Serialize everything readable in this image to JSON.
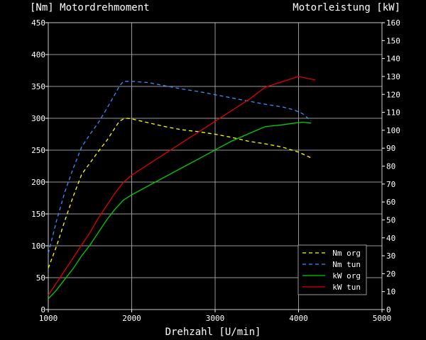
{
  "chart_data": {
    "type": "line",
    "title_left": "[Nm] Motordrehmoment",
    "title_right": "Motorleistung [kW]",
    "xlabel": "Drehzahl [U/min]",
    "xlim": [
      1000,
      5000
    ],
    "ylim_left": [
      0,
      450
    ],
    "ylim_right": [
      0,
      160
    ],
    "x_ticks": [
      1000,
      2000,
      3000,
      4000,
      5000
    ],
    "y_ticks_left": [
      0,
      50,
      100,
      150,
      200,
      250,
      300,
      350,
      400,
      450
    ],
    "y_ticks_right": [
      0,
      10,
      20,
      30,
      40,
      50,
      60,
      70,
      80,
      90,
      100,
      110,
      120,
      130,
      140,
      150,
      160
    ],
    "grid": true,
    "legend_position": "bottom-right",
    "series": [
      {
        "name": "Nm org",
        "axis": "left",
        "color": "#ffff00",
        "style": "dashed",
        "x": [
          1000,
          1100,
          1200,
          1300,
          1400,
          1500,
          1600,
          1700,
          1800,
          1850,
          1900,
          1950,
          2000,
          2200,
          2400,
          2600,
          2800,
          3000,
          3200,
          3400,
          3600,
          3800,
          4000,
          4150
        ],
        "y": [
          65,
          100,
          140,
          178,
          212,
          230,
          248,
          265,
          285,
          295,
          299,
          300,
          299,
          293,
          287,
          282,
          279,
          275,
          270,
          264,
          260,
          255,
          247,
          238
        ]
      },
      {
        "name": "Nm tun",
        "axis": "left",
        "color": "#3a8dff",
        "style": "dashed",
        "x": [
          1000,
          1100,
          1200,
          1300,
          1400,
          1500,
          1600,
          1700,
          1800,
          1850,
          1900,
          2000,
          2200,
          2400,
          2600,
          2800,
          3000,
          3200,
          3400,
          3600,
          3800,
          3950,
          4050,
          4150
        ],
        "y": [
          88,
          140,
          185,
          222,
          255,
          275,
          293,
          315,
          338,
          350,
          358,
          358,
          356,
          351,
          346,
          342,
          337,
          332,
          327,
          322,
          318,
          313,
          307,
          296
        ]
      },
      {
        "name": "kW org",
        "axis": "right",
        "color": "#00d000",
        "style": "solid",
        "x": [
          1000,
          1100,
          1200,
          1300,
          1400,
          1500,
          1600,
          1700,
          1800,
          1900,
          2000,
          2200,
          2400,
          2600,
          2800,
          3000,
          3200,
          3400,
          3600,
          3800,
          3950,
          4050,
          4150
        ],
        "y": [
          6,
          11,
          17,
          23,
          30,
          36,
          43,
          50,
          56,
          61,
          64,
          69,
          74,
          79,
          84,
          89,
          94,
          98,
          102,
          103,
          104,
          104.5,
          104
        ]
      },
      {
        "name": "kW tun",
        "axis": "right",
        "color": "#e00000",
        "style": "solid",
        "x": [
          1000,
          1100,
          1200,
          1300,
          1400,
          1500,
          1600,
          1700,
          1800,
          1900,
          2000,
          2200,
          2400,
          2600,
          2800,
          3000,
          3200,
          3400,
          3600,
          3800,
          4000,
          4100,
          4200
        ],
        "y": [
          8,
          15,
          22,
          29,
          36,
          43,
          51,
          58,
          65,
          71,
          75,
          81,
          87,
          93,
          99,
          105,
          111,
          117,
          124,
          127,
          130,
          129,
          128
        ]
      }
    ]
  }
}
